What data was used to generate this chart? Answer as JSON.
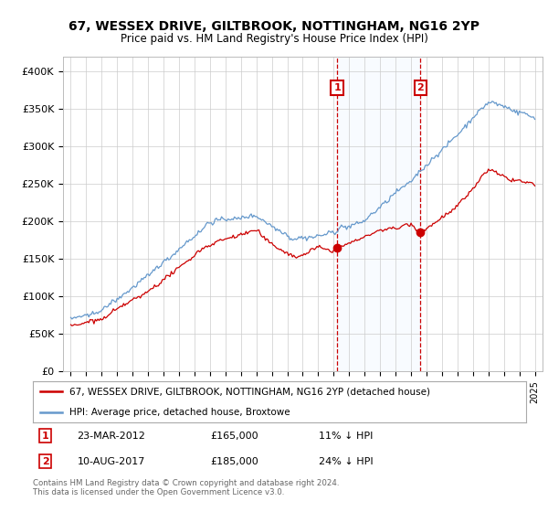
{
  "title": "67, WESSEX DRIVE, GILTBROOK, NOTTINGHAM, NG16 2YP",
  "subtitle": "Price paid vs. HM Land Registry's House Price Index (HPI)",
  "legend_line1": "67, WESSEX DRIVE, GILTBROOK, NOTTINGHAM, NG16 2YP (detached house)",
  "legend_line2": "HPI: Average price, detached house, Broxtowe",
  "annotation1_date": "23-MAR-2012",
  "annotation1_price": "£165,000",
  "annotation1_hpi": "11% ↓ HPI",
  "annotation2_date": "10-AUG-2017",
  "annotation2_price": "£185,000",
  "annotation2_hpi": "24% ↓ HPI",
  "footnote": "Contains HM Land Registry data © Crown copyright and database right 2024.\nThis data is licensed under the Open Government Licence v3.0.",
  "red_color": "#cc0000",
  "blue_color": "#6699cc",
  "shading_color": "#ddeeff",
  "ylim": [
    0,
    420000
  ],
  "yticks": [
    0,
    50000,
    100000,
    150000,
    200000,
    250000,
    300000,
    350000,
    400000
  ],
  "ytick_labels": [
    "£0",
    "£50K",
    "£100K",
    "£150K",
    "£200K",
    "£250K",
    "£300K",
    "£350K",
    "£400K"
  ],
  "sale1_year": 2012.22,
  "sale1_value": 165000,
  "sale2_year": 2017.61,
  "sale2_value": 185000,
  "xmin": 1994.5,
  "xmax": 2025.5
}
